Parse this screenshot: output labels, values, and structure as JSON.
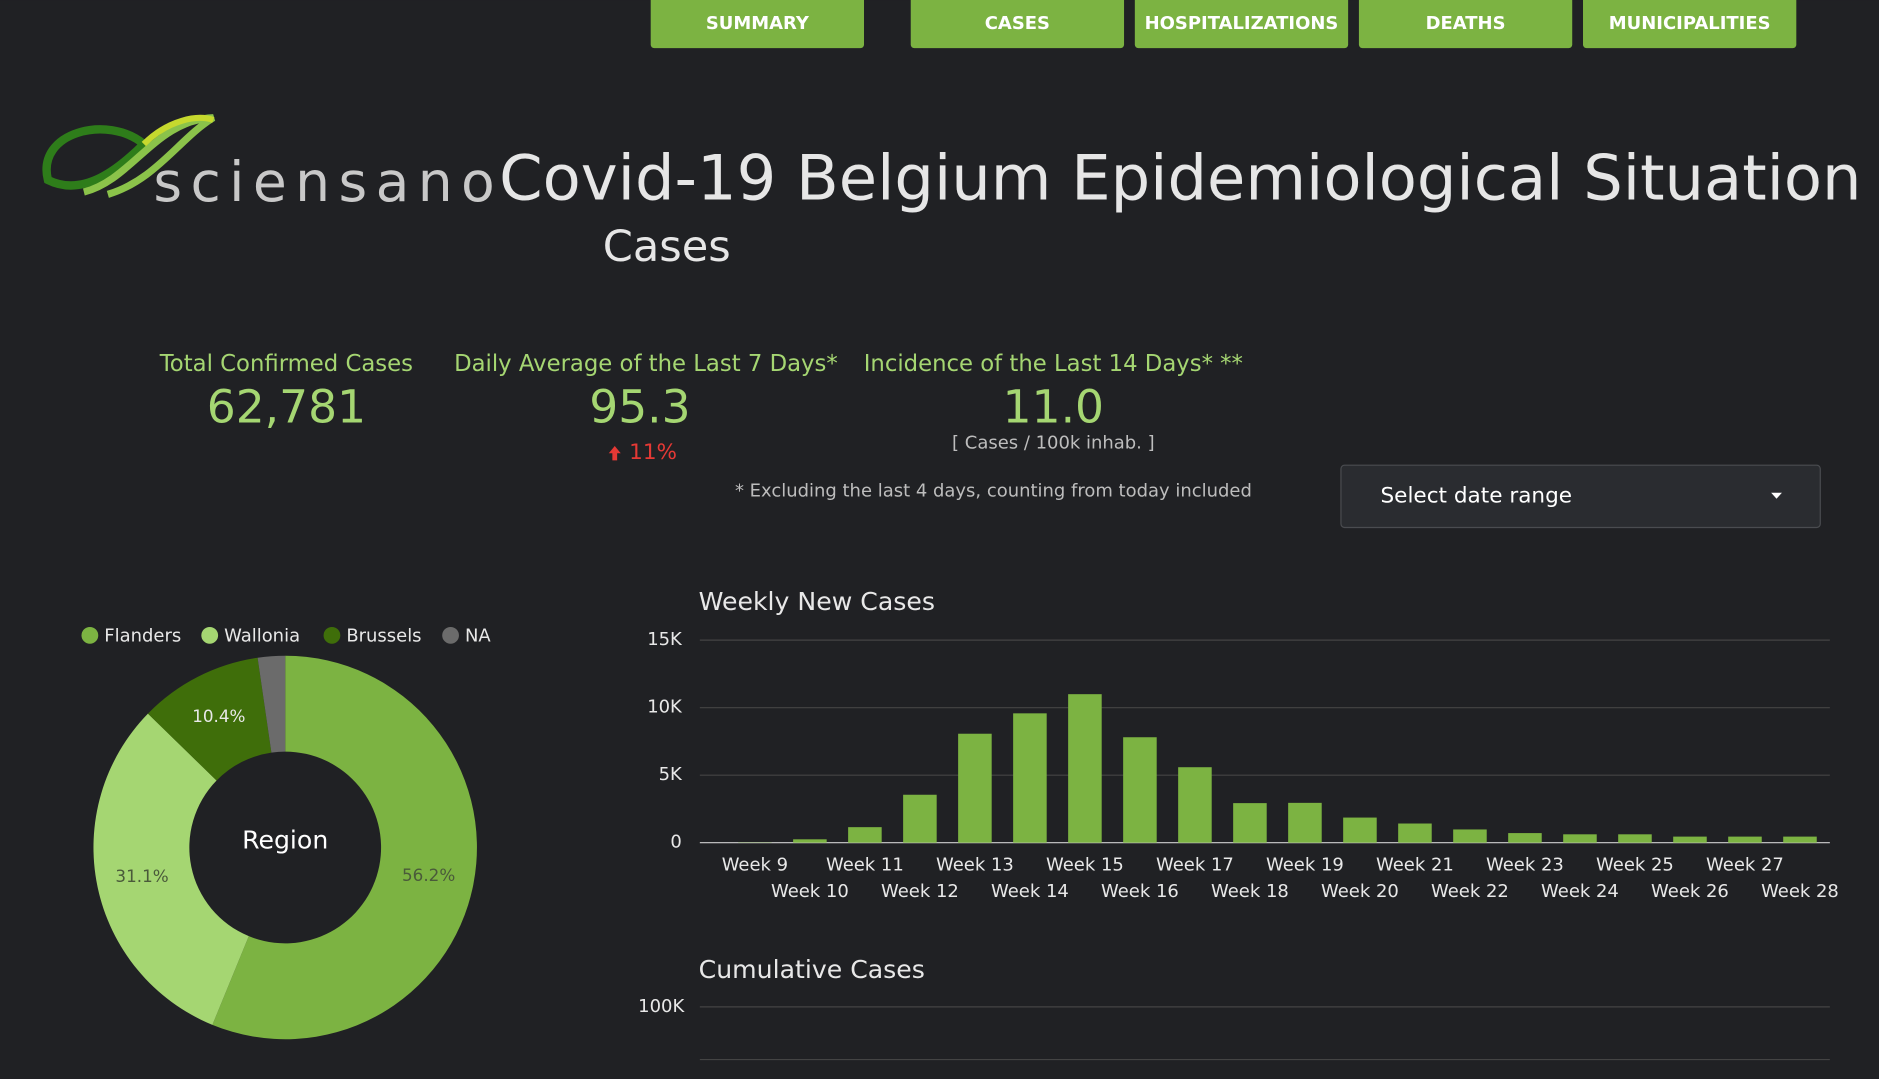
{
  "nav": [
    "SUMMARY",
    "CASES",
    "HOSPITALIZATIONS",
    "DEATHS",
    "MUNICIPALITIES"
  ],
  "logo": "sciensano",
  "header": {
    "title": "Covid-19 Belgium Epidemiological Situation",
    "subtitle": "Cases"
  },
  "kpis": [
    {
      "label": "Total Confirmed Cases",
      "value": "62,781"
    },
    {
      "label": "Daily Average of the Last 7 Days*",
      "value": "95.3",
      "change": "11%"
    },
    {
      "label": "Incidence of the Last 14 Days* **",
      "value": "11.0",
      "note": "[ Cases / 100k inhab. ]"
    }
  ],
  "footnote": "* Excluding the last 4 days, counting from today included",
  "date_selector": "Select date range",
  "chart_data": [
    {
      "type": "pie",
      "center_label": "Region",
      "categories": [
        "Flanders",
        "Wallonia",
        "Brussels",
        "NA"
      ],
      "values": [
        56.2,
        31.1,
        10.4,
        2.3
      ],
      "value_labels": [
        "56.2%",
        "31.1%",
        "10.4%",
        null
      ],
      "colors": [
        "#7cb342",
        "#a5d672",
        "#3f6e0a",
        "#6b6b6b"
      ],
      "legend": "top"
    },
    {
      "type": "bar",
      "title": "Weekly New Cases",
      "categories": [
        "Week 9",
        "Week 10",
        "Week 11",
        "Week 12",
        "Week 13",
        "Week 14",
        "Week 15",
        "Week 16",
        "Week 17",
        "Week 18",
        "Week 19",
        "Week 20",
        "Week 21",
        "Week 22",
        "Week 23",
        "Week 24",
        "Week 25",
        "Week 26",
        "Week 27",
        "Week 28"
      ],
      "values": [
        20,
        250,
        1150,
        3550,
        8070,
        9580,
        11000,
        7810,
        5590,
        2930,
        2950,
        1860,
        1420,
        980,
        710,
        620,
        620,
        450,
        450,
        450
      ],
      "color": "#7cb342",
      "ylim": [
        0,
        15000
      ],
      "yticks": [
        {
          "value": 0,
          "label": "0"
        },
        {
          "value": 5000,
          "label": "5K"
        },
        {
          "value": 10000,
          "label": "10K"
        },
        {
          "value": 15000,
          "label": "15K"
        }
      ],
      "grid": true
    },
    {
      "type": "line",
      "title": "Cumulative Cases",
      "yticks": [
        {
          "value": 100000,
          "label": "100K"
        }
      ],
      "grid": true
    }
  ]
}
